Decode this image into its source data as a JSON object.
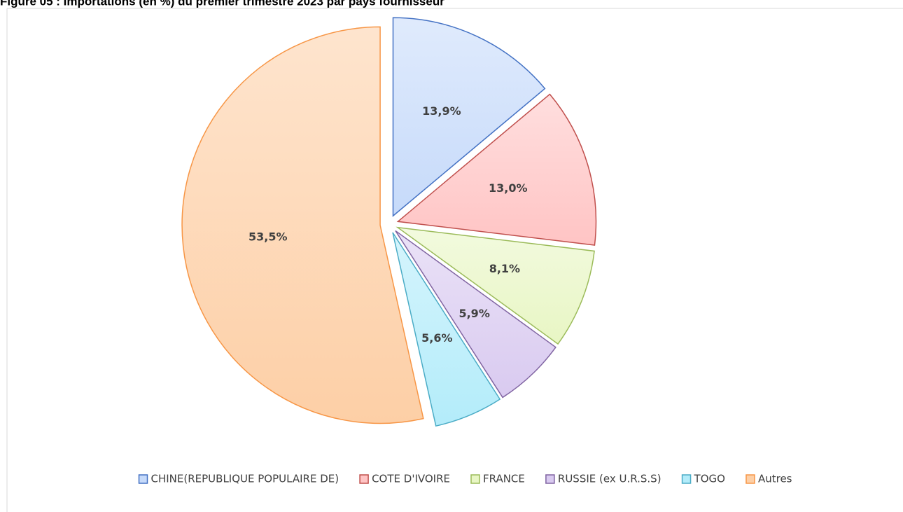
{
  "chart_data": {
    "type": "pie",
    "title": "Figure 05 : Importations (en %) du premier trimestre 2023 par pays fournisseur",
    "categories": [
      "CHINE(REPUBLIQUE POPULAIRE DE)",
      "COTE D'IVOIRE",
      "FRANCE",
      "RUSSIE (ex U.R.S.S)",
      "TOGO",
      "Autres"
    ],
    "values": [
      13.9,
      13.0,
      8.1,
      5.9,
      5.6,
      53.5
    ],
    "value_labels": [
      "13,9%",
      "13,0%",
      "8,1%",
      "5,9%",
      "5,6%",
      "53,5%"
    ],
    "colors": [
      "#4472c4",
      "#c0504d",
      "#9bbb59",
      "#8064a2",
      "#4bacc6",
      "#f79646"
    ],
    "fill_colors": [
      "#c6dafa",
      "#ffc4c4",
      "#e8f6c4",
      "#d9caf0",
      "#b3ecfa",
      "#fdcfa6"
    ],
    "legend": "bottom"
  }
}
